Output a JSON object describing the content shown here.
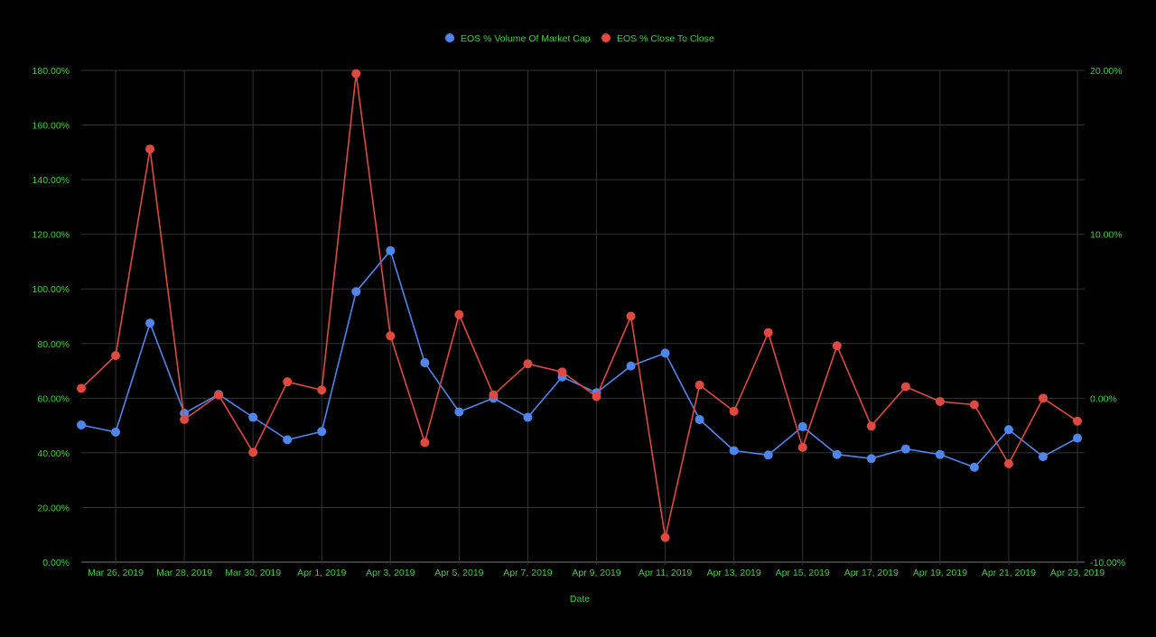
{
  "chart_data": {
    "type": "line",
    "title": "",
    "xlabel": "Date",
    "x_ticks": [
      "Mar 26, 2019",
      "Mar 28, 2019",
      "Mar 30, 2019",
      "Apr 1, 2019",
      "Apr 3, 2019",
      "Apr 5, 2019",
      "Apr 7, 2019",
      "Apr 9, 2019",
      "Apr 11, 2019",
      "Apr 13, 2019",
      "Apr 15, 2019",
      "Apr 17, 2019",
      "Apr 19, 2019",
      "Apr 21, 2019",
      "Apr 23, 2019"
    ],
    "dates": [
      "2019-03-25",
      "2019-03-26",
      "2019-03-27",
      "2019-03-28",
      "2019-03-29",
      "2019-03-30",
      "2019-03-31",
      "2019-04-01",
      "2019-04-02",
      "2019-04-03",
      "2019-04-04",
      "2019-04-05",
      "2019-04-06",
      "2019-04-07",
      "2019-04-08",
      "2019-04-09",
      "2019-04-10",
      "2019-04-11",
      "2019-04-12",
      "2019-04-13",
      "2019-04-14",
      "2019-04-15",
      "2019-04-16",
      "2019-04-17",
      "2019-04-18",
      "2019-04-19",
      "2019-04-20",
      "2019-04-21",
      "2019-04-22",
      "2019-04-23"
    ],
    "y_left": {
      "min": 0,
      "max": 180,
      "ticks": [
        "0.00%",
        "20.00%",
        "40.00%",
        "60.00%",
        "80.00%",
        "100.00%",
        "120.00%",
        "140.00%",
        "160.00%",
        "180.00%"
      ]
    },
    "y_right": {
      "min": -10,
      "max": 20,
      "ticks": [
        "-10.00%",
        "0.00%",
        "10.00%",
        "20.00%"
      ]
    },
    "grid": true,
    "legend_position": "top-center",
    "series": [
      {
        "name": "EOS % Volume Of Market Cap",
        "color": "#4f86ec",
        "axis": "left",
        "values": [
          50.2,
          47.6,
          87.5,
          54.5,
          61.4,
          53.0,
          44.8,
          47.8,
          99.0,
          114.0,
          73.0,
          55.0,
          60.0,
          53.0,
          67.8,
          62.0,
          71.8,
          76.5,
          52.2,
          40.8,
          39.2,
          49.6,
          39.4,
          37.9,
          41.4,
          39.4,
          34.7,
          48.5,
          38.6,
          45.4
        ]
      },
      {
        "name": "EOS % Close To Close",
        "color": "#de4a3f",
        "axis": "right",
        "values": [
          0.6,
          2.6,
          15.2,
          -1.3,
          0.2,
          -3.3,
          1.0,
          0.5,
          19.8,
          3.8,
          -2.7,
          5.1,
          0.2,
          2.1,
          1.6,
          0.1,
          5.0,
          -8.5,
          0.8,
          -0.8,
          4.0,
          -3.0,
          3.2,
          -1.7,
          0.7,
          -0.2,
          -0.4,
          -4.0,
          0.0,
          -1.4
        ]
      }
    ]
  }
}
